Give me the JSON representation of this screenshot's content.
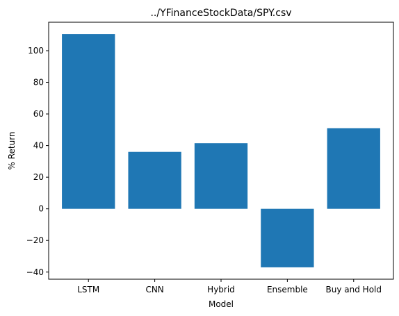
{
  "chart_data": {
    "type": "bar",
    "title": "../YFinanceStockData/SPY.csv",
    "xlabel": "Model",
    "ylabel": "% Return",
    "categories": [
      "LSTM",
      "CNN",
      "Hybrid",
      "Ensemble",
      "Buy and Hold"
    ],
    "values": [
      110.5,
      36,
      41.5,
      -37,
      51
    ],
    "ylim": [
      -44.5,
      118
    ],
    "yticks": [
      -40,
      -20,
      0,
      20,
      40,
      60,
      80,
      100
    ],
    "ytick_labels": [
      "−40",
      "−20",
      "0",
      "20",
      "40",
      "60",
      "80",
      "100"
    ],
    "grid": false,
    "bar_color": "#1f77b4"
  }
}
